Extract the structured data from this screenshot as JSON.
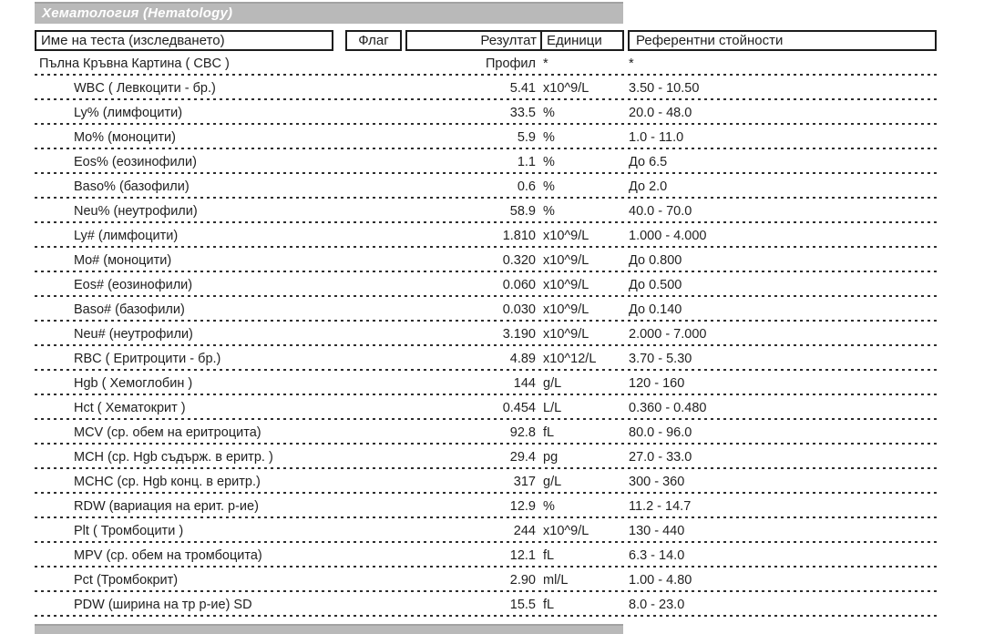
{
  "section_banner": {
    "title": "Хематология (Hematology)",
    "background": "#b9b9b9",
    "text_color": "#ffffff"
  },
  "table": {
    "headers": {
      "name": "Име на теста (изследването)",
      "flag": "Флаг",
      "result": "Резултат",
      "units": "Единици",
      "reference": "Референтни стойности"
    },
    "rows": [
      {
        "name": "Пълна Кръвна Картина ( CBC )",
        "flag": "",
        "result": "Профил",
        "units": "*",
        "reference": "*",
        "indent": false
      },
      {
        "name": "WBC ( Левкоцити - бр.)",
        "flag": "",
        "result": "5.41",
        "units": "x10^9/L",
        "reference": "3.50 - 10.50",
        "indent": true
      },
      {
        "name": "Ly% (лимфоцити)",
        "flag": "",
        "result": "33.5",
        "units": "%",
        "reference": "20.0 - 48.0",
        "indent": true
      },
      {
        "name": "Mo% (моноцити)",
        "flag": "",
        "result": "5.9",
        "units": "%",
        "reference": "1.0 - 11.0",
        "indent": true
      },
      {
        "name": "Eos% (еозинофили)",
        "flag": "",
        "result": "1.1",
        "units": "%",
        "reference": "До 6.5",
        "indent": true
      },
      {
        "name": "Baso% (базофили)",
        "flag": "",
        "result": "0.6",
        "units": "%",
        "reference": "До 2.0",
        "indent": true
      },
      {
        "name": "Neu% (неутрофили)",
        "flag": "",
        "result": "58.9",
        "units": "%",
        "reference": "40.0 - 70.0",
        "indent": true
      },
      {
        "name": "Ly# (лимфоцити)",
        "flag": "",
        "result": "1.810",
        "units": "x10^9/L",
        "reference": "1.000 - 4.000",
        "indent": true
      },
      {
        "name": "Mo# (моноцити)",
        "flag": "",
        "result": "0.320",
        "units": "x10^9/L",
        "reference": "До 0.800",
        "indent": true
      },
      {
        "name": "Eos# (еозинофили)",
        "flag": "",
        "result": "0.060",
        "units": "x10^9/L",
        "reference": "До 0.500",
        "indent": true
      },
      {
        "name": "Baso# (базофили)",
        "flag": "",
        "result": "0.030",
        "units": "x10^9/L",
        "reference": "До 0.140",
        "indent": true
      },
      {
        "name": "Neu# (неутрофили)",
        "flag": "",
        "result": "3.190",
        "units": "x10^9/L",
        "reference": "2.000 - 7.000",
        "indent": true
      },
      {
        "name": "RBC ( Еритроцити - бр.)",
        "flag": "",
        "result": "4.89",
        "units": "x10^12/L",
        "reference": "3.70 - 5.30",
        "indent": true
      },
      {
        "name": "Hgb ( Хемоглобин )",
        "flag": "",
        "result": "144",
        "units": "g/L",
        "reference": "120 - 160",
        "indent": true
      },
      {
        "name": "Hct ( Хематокрит )",
        "flag": "",
        "result": "0.454",
        "units": "L/L",
        "reference": "0.360 - 0.480",
        "indent": true
      },
      {
        "name": "MCV (ср. обем на еритроцита)",
        "flag": "",
        "result": "92.8",
        "units": "fL",
        "reference": "80.0 - 96.0",
        "indent": true
      },
      {
        "name": "MCH (ср. Hgb съдърж. в еритр. )",
        "flag": "",
        "result": "29.4",
        "units": "pg",
        "reference": "27.0 - 33.0",
        "indent": true
      },
      {
        "name": "MCHC (ср. Hgb конц. в еритр.)",
        "flag": "",
        "result": "317",
        "units": "g/L",
        "reference": "300 - 360",
        "indent": true
      },
      {
        "name": "RDW (вариация на ерит. р-ие)",
        "flag": "",
        "result": "12.9",
        "units": "%",
        "reference": "11.2 - 14.7",
        "indent": true
      },
      {
        "name": "Plt ( Тромбоцити )",
        "flag": "",
        "result": "244",
        "units": "x10^9/L",
        "reference": "130 - 440",
        "indent": true
      },
      {
        "name": "MPV (ср. обем на тромбоцита)",
        "flag": "",
        "result": "12.1",
        "units": "fL",
        "reference": "6.3 - 14.0",
        "indent": true
      },
      {
        "name": "Pct (Тромбокрит)",
        "flag": "",
        "result": "2.90",
        "units": "ml/L",
        "reference": "1.00 - 4.80",
        "indent": true
      },
      {
        "name": "PDW (ширина на тр р-ие) SD",
        "flag": "",
        "result": "15.5",
        "units": "fL",
        "reference": "8.0 - 23.0",
        "indent": true
      }
    ]
  },
  "next_section_banner": {
    "title": "",
    "background": "#b9b9b9"
  }
}
